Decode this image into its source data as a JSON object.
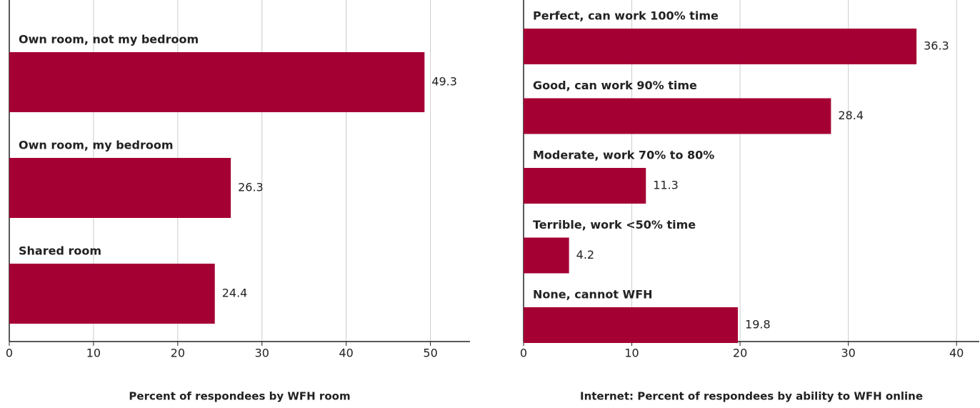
{
  "chart_data": [
    {
      "type": "bar",
      "orientation": "horizontal",
      "xlabel": "Percent of respondees by WFH room",
      "categories": [
        "Own room, not my bedroom",
        "Own room, my bedroom",
        "Shared room"
      ],
      "values": [
        49.3,
        26.3,
        24.4
      ],
      "color": "#a50034",
      "xlim": [
        0,
        54.7
      ],
      "xticks": [
        0,
        10,
        20,
        30,
        40,
        50
      ],
      "grid": true
    },
    {
      "type": "bar",
      "orientation": "horizontal",
      "xlabel": "Internet: Percent of respondees by ability to WFH online",
      "categories": [
        "Perfect, can work 100% time",
        "Good, can work 90% time",
        "Moderate, work 70% to 80%",
        "Terrible, work <50% time",
        "None, cannot WFH"
      ],
      "values": [
        36.3,
        28.4,
        11.3,
        4.2,
        19.8
      ],
      "color": "#a50034",
      "xlim": [
        0,
        42.1
      ],
      "xticks": [
        0,
        10,
        20,
        30,
        40
      ],
      "grid": true
    }
  ]
}
